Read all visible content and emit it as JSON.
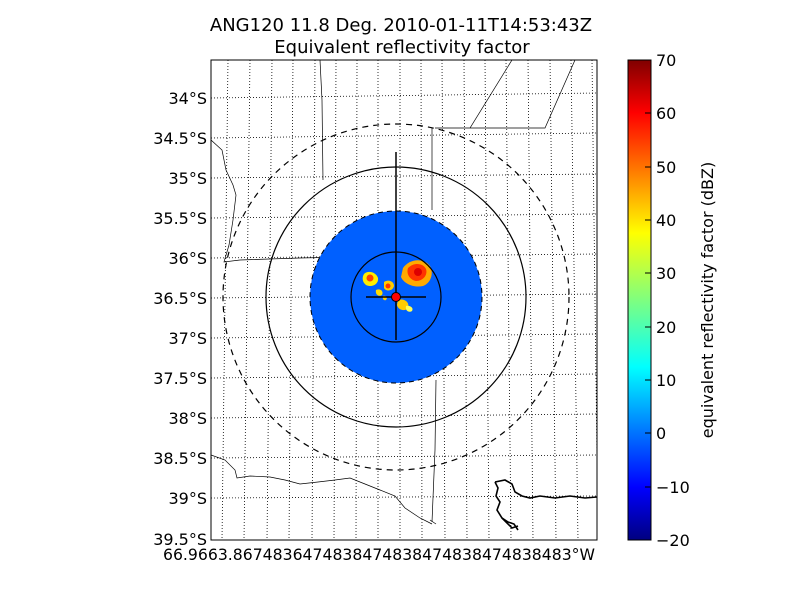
{
  "chart_data": {
    "type": "heatmap",
    "title_line1": "ANG120 11.8 Deg. 2010-01-11T14:53:43Z",
    "title_line2": "Equivalent reflectivity factor",
    "y_ticks": [
      "34°S",
      "34.5°S",
      "35°S",
      "35.5°S",
      "36°S",
      "36.5°S",
      "37°S",
      "37.5°S",
      "38°S",
      "38.5°S",
      "39°S",
      "39.5°S"
    ],
    "y_tick_values": [
      -34.0,
      -34.5,
      -35.0,
      -35.5,
      -36.0,
      -36.5,
      -37.0,
      -37.5,
      -38.0,
      -38.5,
      -39.0,
      -39.5
    ],
    "ylim": [
      -39.5,
      -33.55
    ],
    "x_tick_text": "66.9663.8674836474838474838474838474838483°W",
    "colorbar": {
      "label": "equivalent reflectivity factor (dBZ)",
      "min": -20,
      "max": 70,
      "ticks": [
        "70",
        "60",
        "50",
        "40",
        "30",
        "20",
        "10",
        "0",
        "−10",
        "−20"
      ],
      "tick_values": [
        70,
        60,
        50,
        40,
        30,
        20,
        10,
        0,
        -10,
        -20
      ]
    },
    "radar": {
      "center_lat": -36.48,
      "background_dbz": 0,
      "site_color": "#ff0000",
      "echo_dbz_max": 60
    },
    "colors": {
      "background_field": "#0055ff",
      "echo_low": "#ffcc00",
      "echo_high": "#ff2200"
    }
  }
}
